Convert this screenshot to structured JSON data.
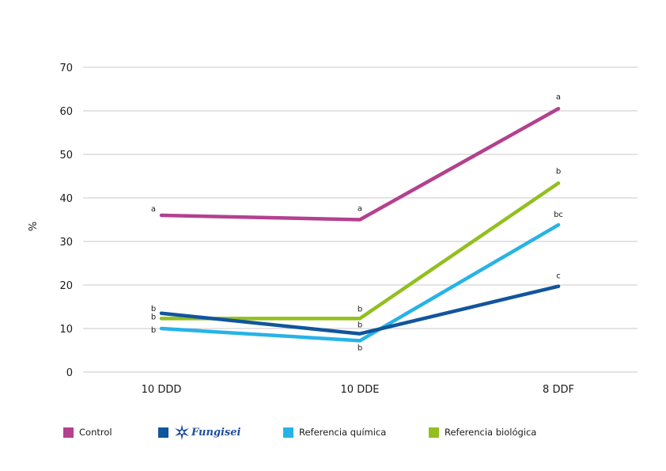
{
  "chart_data": {
    "type": "line",
    "categories": [
      "10 DDD",
      "10 DDE",
      "8 DDF"
    ],
    "ylabel": "%",
    "ylim": [
      0,
      70
    ],
    "yticks": [
      0,
      10,
      20,
      30,
      40,
      50,
      60,
      70
    ],
    "grid": true,
    "legend_position": "bottom",
    "series": [
      {
        "name": "Control",
        "color": "#b3418e",
        "values": [
          36,
          35,
          60.5
        ],
        "labels": [
          "a",
          "a",
          "a"
        ]
      },
      {
        "name": "Fungisei",
        "color": "#11559c",
        "values": [
          13.5,
          8.8,
          19.7
        ],
        "labels": [
          "b",
          "b",
          "c"
        ]
      },
      {
        "name": "Referencia química",
        "color": "#27b3e6",
        "values": [
          10,
          7.2,
          33.8
        ],
        "labels": [
          "b",
          "b",
          "bc"
        ]
      },
      {
        "name": "Referencia biológica",
        "color": "#93bf1f",
        "values": [
          12.3,
          12.3,
          43.4
        ],
        "labels": [
          "b",
          "b",
          "b"
        ]
      }
    ]
  },
  "legend": {
    "items": [
      {
        "label": "Control",
        "color": "#b3418e",
        "icon": "swatch"
      },
      {
        "label": "Fungisei",
        "color": "#11559c",
        "icon": "fungisei-logo",
        "brand_color": "#1f4e9a"
      },
      {
        "label": "Referencia química",
        "color": "#27b3e6",
        "icon": "swatch"
      },
      {
        "label": "Referencia biológica",
        "color": "#93bf1f",
        "icon": "swatch"
      }
    ]
  }
}
